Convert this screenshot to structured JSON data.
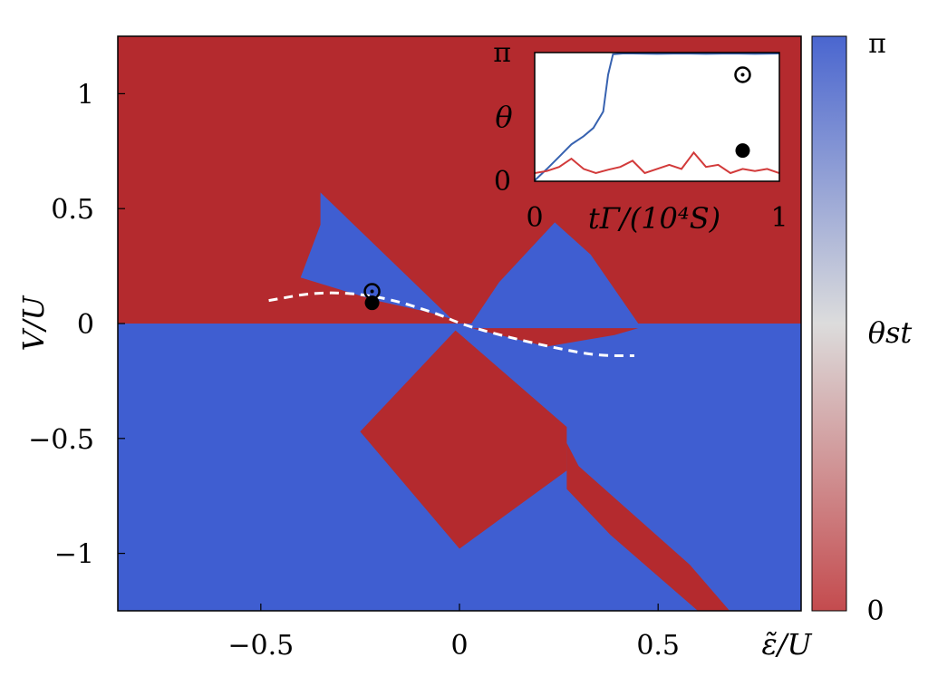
{
  "chart_data": [
    {
      "type": "heatmap",
      "xlabel": "ε̃/U",
      "ylabel": "V/U",
      "xlim": [
        -0.86,
        0.86
      ],
      "ylim": [
        -1.25,
        1.25
      ],
      "xticks": [
        {
          "value": -0.5,
          "label": "−0.5"
        },
        {
          "value": 0,
          "label": "0"
        },
        {
          "value": 0.5,
          "label": "0.5"
        }
      ],
      "yticks": [
        {
          "value": 1,
          "label": "1"
        },
        {
          "value": 0.5,
          "label": "0.5"
        },
        {
          "value": 0,
          "label": "0"
        },
        {
          "value": -0.5,
          "label": "−0.5"
        },
        {
          "value": -1,
          "label": "−1"
        }
      ],
      "colorbar": {
        "label": "θst",
        "min_label": "0",
        "max_label": "π",
        "low_color": "#c44b4e",
        "mid_color": "#dcdcdc",
        "high_color": "#4a66cf"
      },
      "colors": {
        "red": "#b42a2e",
        "blue": "#3f5ed1"
      },
      "regions": [
        {
          "name": "upper-background",
          "value": 0,
          "polygon": [
            [
              -0.86,
              0
            ],
            [
              0.86,
              0
            ],
            [
              0.86,
              1.25
            ],
            [
              -0.86,
              1.25
            ]
          ]
        },
        {
          "name": "lower-background",
          "value": 3.1416,
          "polygon": [
            [
              -0.86,
              -1.25
            ],
            [
              0.86,
              -1.25
            ],
            [
              0.86,
              0
            ],
            [
              -0.86,
              0
            ]
          ]
        },
        {
          "name": "left-blue-lobe",
          "value": 3.1416,
          "polygon": [
            [
              -0.35,
              0.57
            ],
            [
              -0.35,
              0.43
            ],
            [
              -0.4,
              0.2
            ],
            [
              -0.21,
              0.1
            ],
            [
              -0.08,
              0.05
            ],
            [
              -0.02,
              0.02
            ],
            [
              -0.35,
              0.57
            ]
          ]
        },
        {
          "name": "right-blue-lobe",
          "value": 3.1416,
          "polygon": [
            [
              0.03,
              0.0
            ],
            [
              0.1,
              0.18
            ],
            [
              0.24,
              0.44
            ],
            [
              0.33,
              0.3
            ],
            [
              0.45,
              0.0
            ]
          ]
        },
        {
          "name": "lower-red-wing",
          "value": 0,
          "polygon": [
            [
              0.03,
              -0.02
            ],
            [
              0.45,
              -0.02
            ],
            [
              0.39,
              -0.05
            ],
            [
              0.22,
              -0.1
            ],
            [
              0.03,
              -0.02
            ]
          ]
        },
        {
          "name": "center-red-diamond",
          "value": 0,
          "polygon": [
            [
              -0.01,
              -0.03
            ],
            [
              0.27,
              -0.45
            ],
            [
              0.27,
              -0.64
            ],
            [
              0,
              -0.98
            ],
            [
              -0.25,
              -0.47
            ]
          ]
        },
        {
          "name": "lower-right-red-strip",
          "value": 0,
          "polygon": [
            [
              0.27,
              -0.52
            ],
            [
              0.3,
              -0.62
            ],
            [
              0.58,
              -1.05
            ],
            [
              0.68,
              -1.25
            ],
            [
              0.6,
              -1.25
            ],
            [
              0.38,
              -0.92
            ],
            [
              0.27,
              -0.72
            ]
          ]
        }
      ],
      "dashed_curve": {
        "color": "#ffffff",
        "points": [
          [
            -0.48,
            0.1
          ],
          [
            -0.35,
            0.14
          ],
          [
            -0.2,
            0.12
          ],
          [
            -0.05,
            0.04
          ],
          [
            0,
            0
          ],
          [
            0.1,
            -0.05
          ],
          [
            0.25,
            -0.11
          ],
          [
            0.35,
            -0.14
          ],
          [
            0.44,
            -0.14
          ]
        ]
      },
      "markers": [
        {
          "name": "open-circle-dot",
          "x": -0.22,
          "y": 0.14,
          "style": "open"
        },
        {
          "name": "filled-circle",
          "x": -0.22,
          "y": 0.09,
          "style": "filled"
        }
      ]
    },
    {
      "type": "line",
      "xlabel": "tΓ/(10⁴S)",
      "ylabel": "θ",
      "xlim": [
        0,
        1
      ],
      "ylim": [
        0,
        3.1416
      ],
      "xticks": [
        {
          "value": 0,
          "label": "0"
        },
        {
          "value": 1,
          "label": "1"
        }
      ],
      "yticks": [
        {
          "value": 0,
          "label": "0"
        },
        {
          "value": 3.1416,
          "label": "π"
        }
      ],
      "series": [
        {
          "color": "#3762b0",
          "x": [
            0,
            0.05,
            0.1,
            0.15,
            0.2,
            0.24,
            0.28,
            0.3,
            0.32,
            0.36,
            0.4,
            0.5,
            0.6,
            0.7,
            0.8,
            0.9,
            1.0
          ],
          "y": [
            0.02,
            0.3,
            0.6,
            0.9,
            1.1,
            1.3,
            1.7,
            2.6,
            3.1,
            3.12,
            3.12,
            3.11,
            3.12,
            3.11,
            3.12,
            3.11,
            3.12
          ]
        },
        {
          "color": "#d23a3a",
          "x": [
            0,
            0.05,
            0.1,
            0.15,
            0.2,
            0.25,
            0.3,
            0.35,
            0.4,
            0.45,
            0.5,
            0.55,
            0.6,
            0.65,
            0.7,
            0.75,
            0.8,
            0.85,
            0.9,
            0.95,
            1.0
          ],
          "y": [
            0.2,
            0.25,
            0.35,
            0.55,
            0.3,
            0.2,
            0.28,
            0.35,
            0.5,
            0.2,
            0.3,
            0.4,
            0.3,
            0.7,
            0.35,
            0.4,
            0.2,
            0.3,
            0.25,
            0.3,
            0.2
          ]
        }
      ],
      "markers": [
        {
          "name": "inset-open-circle-dot",
          "x": 0.85,
          "y": 2.6,
          "style": "open"
        },
        {
          "name": "inset-filled-circle",
          "x": 0.85,
          "y": 0.75,
          "style": "filled"
        }
      ]
    }
  ]
}
